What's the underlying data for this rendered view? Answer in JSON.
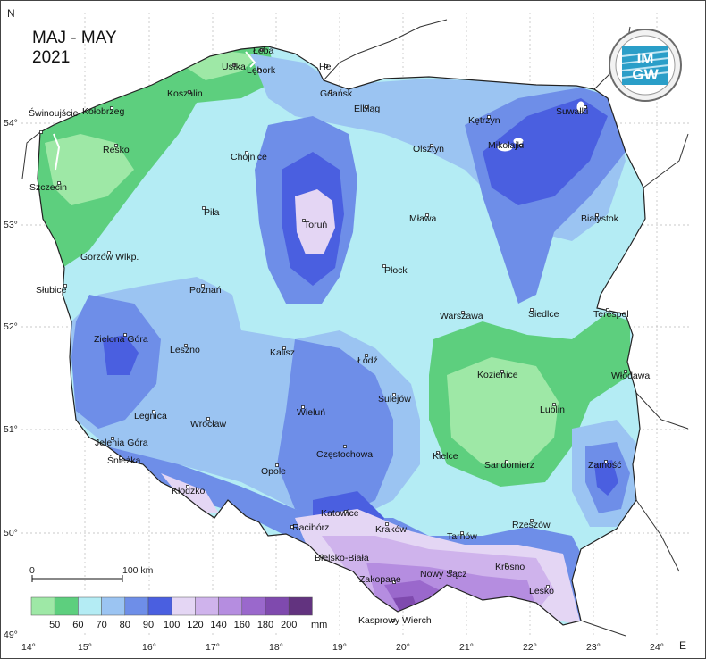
{
  "title": {
    "line1": "MAJ - MAY",
    "line2": "2021"
  },
  "logo": {
    "text_top": "IM",
    "text_bottom": "GW"
  },
  "axes": {
    "north_label": "N",
    "east_label": "E",
    "lon_ticks": [
      "14°",
      "15°",
      "16°",
      "17°",
      "18°",
      "19°",
      "20°",
      "21°",
      "22°",
      "23°",
      "24°"
    ],
    "lat_ticks": [
      "54°",
      "53°",
      "52°",
      "51°",
      "50°",
      "49°"
    ]
  },
  "scale_bar": {
    "start": "0",
    "end": "100 km"
  },
  "legend": {
    "unit": "mm",
    "labels": [
      "50",
      "60",
      "70",
      "80",
      "90",
      "100",
      "120",
      "140",
      "160",
      "180",
      "200"
    ],
    "colors": [
      "#9ee8a6",
      "#5dcf7e",
      "#b4ecf4",
      "#9bc4f2",
      "#6e8ee8",
      "#4a5fe0",
      "#e4d6f4",
      "#cfb3ec",
      "#b58de0",
      "#9a68cc",
      "#7f4aae",
      "#62337f"
    ]
  },
  "cities": [
    {
      "name": "Łeba"
    },
    {
      "name": "Hel"
    },
    {
      "name": "Ustka"
    },
    {
      "name": "Lębork"
    },
    {
      "name": "Koszalin"
    },
    {
      "name": "Świnoujście"
    },
    {
      "name": "Kołobrzeg"
    },
    {
      "name": "Gdańsk"
    },
    {
      "name": "Elbląg"
    },
    {
      "name": "Kętrzyn"
    },
    {
      "name": "Suwałki"
    },
    {
      "name": "Mikołajki"
    },
    {
      "name": "Olsztyn"
    },
    {
      "name": "Resko"
    },
    {
      "name": "Chojnice"
    },
    {
      "name": "Szczecin"
    },
    {
      "name": "Toruń"
    },
    {
      "name": "Piła"
    },
    {
      "name": "Mława"
    },
    {
      "name": "Białystok"
    },
    {
      "name": "Gorzów Wlkp."
    },
    {
      "name": "Płock"
    },
    {
      "name": "Słubice"
    },
    {
      "name": "Poznań"
    },
    {
      "name": "Warszawa"
    },
    {
      "name": "Siedlce"
    },
    {
      "name": "Terespol"
    },
    {
      "name": "Zielona Góra"
    },
    {
      "name": "Leszno"
    },
    {
      "name": "Kalisz"
    },
    {
      "name": "Łódź"
    },
    {
      "name": "Kozienice"
    },
    {
      "name": "Włodawa"
    },
    {
      "name": "Sulejów"
    },
    {
      "name": "Lublin"
    },
    {
      "name": "Legnica"
    },
    {
      "name": "Wrocław"
    },
    {
      "name": "Wieluń"
    },
    {
      "name": "Jelenia Góra"
    },
    {
      "name": "Śnieżka"
    },
    {
      "name": "Częstochowa"
    },
    {
      "name": "Kielce"
    },
    {
      "name": "Sandomierz"
    },
    {
      "name": "Zamość"
    },
    {
      "name": "Opole"
    },
    {
      "name": "Kłodzko"
    },
    {
      "name": "Katowice"
    },
    {
      "name": "Racibórz"
    },
    {
      "name": "Kraków"
    },
    {
      "name": "Tarnów"
    },
    {
      "name": "Rzeszów"
    },
    {
      "name": "Bielsko-Biała"
    },
    {
      "name": "Nowy Sącz"
    },
    {
      "name": "Krosno"
    },
    {
      "name": "Zakopane"
    },
    {
      "name": "Lesko"
    },
    {
      "name": "Kasprowy Wierch"
    }
  ]
}
